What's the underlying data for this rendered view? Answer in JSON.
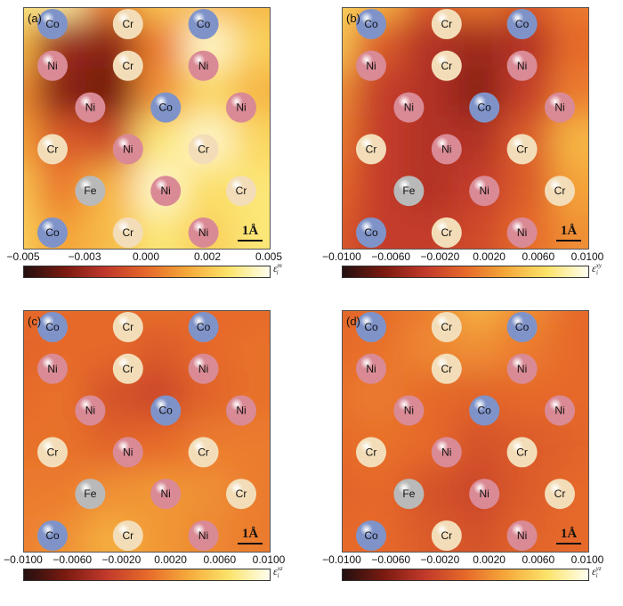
{
  "colors": {
    "Co": "#7f93c9",
    "Ni": "#d98a95",
    "Cr": "#f3ddb8",
    "Fe": "#b9b9b9",
    "cmap": [
      "#231010",
      "#7a1a10",
      "#c0392b",
      "#e6692a",
      "#f5a93a",
      "#fbe36a",
      "#fffef0"
    ]
  },
  "panels": [
    {
      "label": "(a)",
      "scale": "1Å",
      "colorbar": {
        "ticks": [
          "−0.005",
          "−0.003",
          "0.000",
          "0.002",
          "0.005"
        ],
        "symbol": "ε",
        "sup": "m",
        "sub": "i"
      },
      "field": [
        [
          0.85,
          0.9,
          0.55,
          0.75,
          0.7,
          0.7
        ],
        [
          0.72,
          0.25,
          0.2,
          0.55,
          0.95,
          0.78
        ],
        [
          0.6,
          0.2,
          0.15,
          0.6,
          0.8,
          0.7
        ],
        [
          0.65,
          0.45,
          0.4,
          0.85,
          0.95,
          0.8
        ],
        [
          0.75,
          0.55,
          0.7,
          0.95,
          0.82,
          0.85
        ],
        [
          0.78,
          0.65,
          0.72,
          0.85,
          0.78,
          0.85
        ]
      ]
    },
    {
      "label": "(b)",
      "scale": "1Å",
      "colorbar": {
        "ticks": [
          "−0.0100",
          "−0.0060",
          "−0.0020",
          "0.0020",
          "0.0060",
          "0.0100"
        ],
        "symbol": "ε",
        "sup": "xy",
        "sub": "i"
      },
      "field": [
        [
          0.8,
          0.7,
          0.45,
          0.55,
          0.45,
          0.55
        ],
        [
          0.75,
          0.45,
          0.3,
          0.25,
          0.3,
          0.5
        ],
        [
          0.6,
          0.35,
          0.3,
          0.2,
          0.35,
          0.55
        ],
        [
          0.55,
          0.35,
          0.3,
          0.3,
          0.45,
          0.7
        ],
        [
          0.5,
          0.35,
          0.3,
          0.35,
          0.45,
          0.65
        ],
        [
          0.45,
          0.35,
          0.35,
          0.4,
          0.5,
          0.6
        ]
      ]
    },
    {
      "label": "(c)",
      "scale": "1Å",
      "colorbar": {
        "ticks": [
          "−0.0100",
          "−0.0060",
          "−0.0020",
          "0.0020",
          "0.0060",
          "0.0100"
        ],
        "symbol": "ε",
        "sup": "xz",
        "sub": "i"
      },
      "field": [
        [
          0.5,
          0.5,
          0.5,
          0.52,
          0.5,
          0.5
        ],
        [
          0.48,
          0.5,
          0.5,
          0.45,
          0.5,
          0.52
        ],
        [
          0.5,
          0.52,
          0.42,
          0.38,
          0.48,
          0.52
        ],
        [
          0.52,
          0.52,
          0.48,
          0.5,
          0.55,
          0.55
        ],
        [
          0.55,
          0.55,
          0.6,
          0.62,
          0.6,
          0.55
        ],
        [
          0.55,
          0.6,
          0.68,
          0.62,
          0.58,
          0.55
        ]
      ]
    },
    {
      "label": "(d)",
      "scale": "1Å",
      "colorbar": {
        "ticks": [
          "−0.0100",
          "−0.0060",
          "−0.0020",
          "0.0020",
          "0.0060",
          "0.0100"
        ],
        "symbol": "ε",
        "sup": "yz",
        "sub": "i"
      },
      "field": [
        [
          0.48,
          0.5,
          0.55,
          0.7,
          0.6,
          0.5
        ],
        [
          0.5,
          0.52,
          0.58,
          0.6,
          0.55,
          0.5
        ],
        [
          0.52,
          0.55,
          0.5,
          0.48,
          0.5,
          0.5
        ],
        [
          0.5,
          0.52,
          0.5,
          0.42,
          0.45,
          0.48
        ],
        [
          0.48,
          0.5,
          0.42,
          0.38,
          0.45,
          0.5
        ],
        [
          0.5,
          0.5,
          0.45,
          0.42,
          0.48,
          0.5
        ]
      ]
    }
  ],
  "atoms_by_panel": [
    [
      [
        "Co",
        0,
        0
      ],
      [
        "Cr",
        2,
        0
      ],
      [
        "Co",
        4,
        0
      ],
      [
        "Ni",
        0,
        1
      ],
      [
        "Cr",
        2,
        1
      ],
      [
        "Ni",
        4,
        1
      ],
      [
        "Ni",
        1,
        2
      ],
      [
        "Co",
        3,
        2
      ],
      [
        "Ni",
        5,
        2
      ],
      [
        "Cr",
        0,
        3
      ],
      [
        "Ni",
        2,
        3
      ],
      [
        "Cr",
        4,
        3
      ],
      [
        "Fe",
        1,
        4
      ],
      [
        "Ni",
        3,
        4
      ],
      [
        "Cr",
        5,
        4
      ],
      [
        "Co",
        0,
        5
      ],
      [
        "Cr",
        2,
        5
      ],
      [
        "Ni",
        4,
        5
      ]
    ],
    [
      [
        "Co",
        0,
        0
      ],
      [
        "Cr",
        2,
        0
      ],
      [
        "Co",
        4,
        0
      ],
      [
        "Ni",
        0,
        1
      ],
      [
        "Cr",
        2,
        1
      ],
      [
        "Ni",
        4,
        1
      ],
      [
        "Ni",
        1,
        2
      ],
      [
        "Co",
        3,
        2
      ],
      [
        "Ni",
        5,
        2
      ],
      [
        "Cr",
        0,
        3
      ],
      [
        "Ni",
        2,
        3
      ],
      [
        "Cr",
        4,
        3
      ],
      [
        "Fe",
        1,
        4
      ],
      [
        "Ni",
        3,
        4
      ],
      [
        "Cr",
        5,
        4
      ],
      [
        "Co",
        0,
        5
      ],
      [
        "Cr",
        2,
        5
      ],
      [
        "Ni",
        4,
        5
      ]
    ],
    [
      [
        "Co",
        0,
        0
      ],
      [
        "Cr",
        2,
        0
      ],
      [
        "Co",
        4,
        0
      ],
      [
        "Ni",
        0,
        1
      ],
      [
        "Cr",
        2,
        1
      ],
      [
        "Ni",
        4,
        1
      ],
      [
        "Ni",
        1,
        2
      ],
      [
        "Co",
        3,
        2
      ],
      [
        "Ni",
        5,
        2
      ],
      [
        "Cr",
        0,
        3
      ],
      [
        "Ni",
        2,
        3
      ],
      [
        "Cr",
        4,
        3
      ],
      [
        "Fe",
        1,
        4
      ],
      [
        "Ni",
        3,
        4
      ],
      [
        "Cr",
        5,
        4
      ],
      [
        "Co",
        0,
        5
      ],
      [
        "Cr",
        2,
        5
      ],
      [
        "Ni",
        4,
        5
      ]
    ],
    [
      [
        "Co",
        0,
        0
      ],
      [
        "Cr",
        2,
        0
      ],
      [
        "Co",
        4,
        0
      ],
      [
        "Ni",
        0,
        1
      ],
      [
        "Cr",
        2,
        1
      ],
      [
        "Ni",
        4,
        1
      ],
      [
        "Ni",
        1,
        2
      ],
      [
        "Co",
        3,
        2
      ],
      [
        "Ni",
        5,
        2
      ],
      [
        "Cr",
        0,
        3
      ],
      [
        "Ni",
        2,
        3
      ],
      [
        "Cr",
        4,
        3
      ],
      [
        "Fe",
        1,
        4
      ],
      [
        "Ni",
        3,
        4
      ],
      [
        "Cr",
        5,
        4
      ],
      [
        "Co",
        0,
        5
      ],
      [
        "Cr",
        2,
        5
      ],
      [
        "Ni",
        4,
        5
      ]
    ]
  ]
}
